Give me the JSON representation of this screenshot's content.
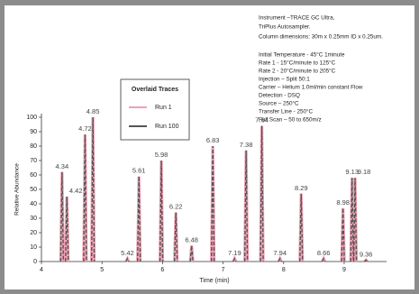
{
  "chart_data": {
    "type": "peaks",
    "notes": [
      "Instrument –TRACE GC Ultra,",
      "TriPlus Autosampler.",
      "Column dimensions: 30m x 0.25mm ID x 0.25um.",
      "Initial Temperature - 45°C 1minute",
      "Rate 1 - 15°C/minute to 125°C",
      "Rate 2 - 20°C/minute to 205°C",
      "Injection – Split 50:1",
      "Carrier – Helium 1.0ml/min constant Flow",
      "Detection - DSQ",
      "Source – 250°C",
      "Transfer Line - 250°C",
      "Full Scan – 50 to 650m/z"
    ],
    "legend_title": "Overlaid Traces",
    "x_label": "Time (min)",
    "y_label": "Relative Abundance",
    "x": [
      4.34,
      4.42,
      4.72,
      4.85,
      5.42,
      5.61,
      5.98,
      6.22,
      6.48,
      6.83,
      7.19,
      7.38,
      7.64,
      7.94,
      8.29,
      8.66,
      8.98,
      9.13,
      9.18,
      9.36
    ],
    "series": [
      {
        "name": "Run 1",
        "color": "#f0a0b4",
        "values": [
          62,
          45,
          88,
          100,
          2,
          59,
          70,
          34,
          11,
          80,
          2,
          77,
          94,
          2,
          47,
          2,
          37,
          58,
          58,
          1
        ]
      },
      {
        "name": "Run 100",
        "color": "#555555",
        "values": [
          62,
          45,
          88,
          100,
          2,
          59,
          70,
          34,
          11,
          80,
          2,
          77,
          94,
          2,
          47,
          2,
          37,
          58,
          58,
          1
        ]
      }
    ],
    "xlim": [
      4,
      9.7
    ],
    "ylim": [
      0,
      100
    ],
    "xticks": [
      4,
      5,
      6,
      7,
      8,
      9
    ],
    "yticks": [
      0,
      10,
      20,
      30,
      40,
      50,
      60,
      70,
      80,
      90,
      100
    ]
  }
}
